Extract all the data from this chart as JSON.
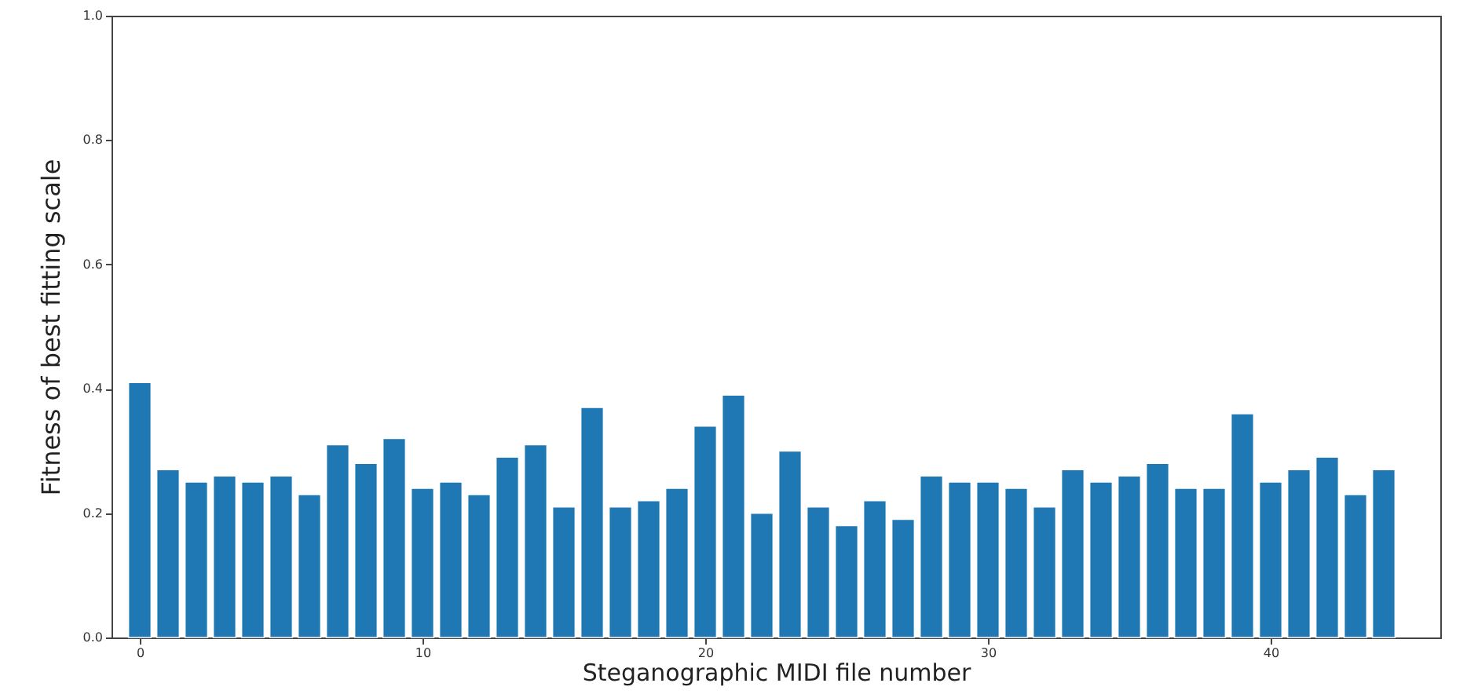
{
  "chart_data": {
    "type": "bar",
    "xlabel": "Steganographic MIDI file number",
    "ylabel": "Fitness of best fitting scale",
    "x": [
      0,
      1,
      2,
      3,
      4,
      5,
      6,
      7,
      8,
      9,
      10,
      11,
      12,
      13,
      14,
      15,
      16,
      17,
      18,
      19,
      20,
      21,
      22,
      23,
      24,
      25,
      26,
      27,
      28,
      29,
      30,
      31,
      32,
      33,
      34,
      35,
      36,
      37,
      38,
      39,
      40,
      41,
      42,
      43,
      44
    ],
    "values": [
      0.41,
      0.27,
      0.25,
      0.26,
      0.25,
      0.26,
      0.23,
      0.31,
      0.28,
      0.32,
      0.24,
      0.25,
      0.23,
      0.29,
      0.31,
      0.21,
      0.37,
      0.21,
      0.22,
      0.24,
      0.34,
      0.39,
      0.2,
      0.3,
      0.21,
      0.18,
      0.22,
      0.19,
      0.26,
      0.25,
      0.25,
      0.24,
      0.21,
      0.27,
      0.25,
      0.26,
      0.28,
      0.24,
      0.24,
      0.36,
      0.25,
      0.27,
      0.29,
      0.23,
      0.27
    ],
    "color": "#1f77b4",
    "xlim": [
      -1,
      46
    ],
    "xticks": [
      0,
      10,
      20,
      30,
      40
    ],
    "ylim": [
      0,
      1
    ],
    "yticks": [
      {
        "value": 0,
        "label": "0.0"
      },
      {
        "value": 0.2,
        "label": "0.2"
      },
      {
        "value": 0.4,
        "label": "0.4"
      },
      {
        "value": 0.6,
        "label": "0.6"
      },
      {
        "value": 0.8,
        "label": "0.8"
      },
      {
        "value": 1,
        "label": "1.0"
      }
    ]
  }
}
